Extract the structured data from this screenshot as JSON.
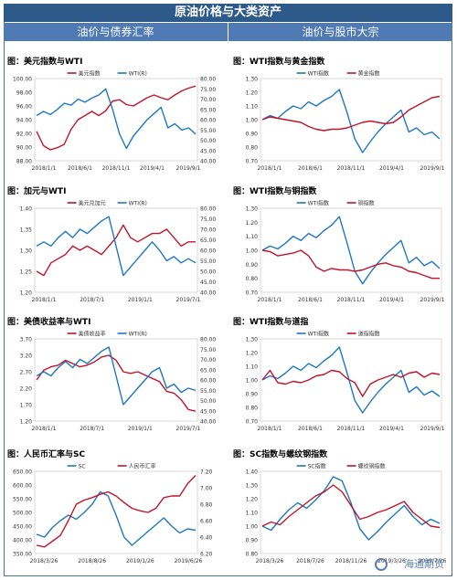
{
  "header": {
    "title": "原油价格与大类资产",
    "left_section": "油价与债券汇率",
    "right_section": "油价与股市大宗"
  },
  "watermark": "海通期货",
  "colors": {
    "red": "#c0142b",
    "blue": "#1f77c4",
    "header": "#2e5a8a",
    "section": "#4f7ab3"
  },
  "chart_data": [
    {
      "id": "usd-wti",
      "type": "line",
      "title": "图：美元指数与WTI",
      "x_ticks": [
        "2018/1/1",
        "2018/6/1",
        "2018/11/1",
        "2019/4/1",
        "2019/9/1"
      ],
      "y_left": {
        "ticks": [
          "88.00",
          "90.00",
          "92.00",
          "94.00",
          "96.00",
          "98.00",
          "100.00"
        ],
        "range": [
          88,
          100
        ]
      },
      "y_right": {
        "ticks": [
          "40.00",
          "45.00",
          "50.00",
          "55.00",
          "60.00",
          "65.00",
          "70.00",
          "75.00",
          "80.00"
        ],
        "range": [
          40,
          80
        ]
      },
      "series": [
        {
          "name": "美元指数",
          "axis": "left",
          "color": "#c0142b",
          "values": [
            92.3,
            90.2,
            89.6,
            89.9,
            90.4,
            92.6,
            94.0,
            94.6,
            95.2,
            94.6,
            95.3,
            96.7,
            96.9,
            96.2,
            96.0,
            96.6,
            97.2,
            97.6,
            97.2,
            96.9,
            97.6,
            98.2,
            98.6,
            98.9
          ]
        },
        {
          "name": "WTI(R)",
          "axis": "right",
          "color": "#1f77c4",
          "values": [
            62.0,
            64.0,
            62.5,
            65.0,
            68.0,
            67.0,
            70.0,
            68.5,
            70.5,
            72.0,
            75.0,
            65.0,
            53.0,
            46.0,
            52.0,
            56.0,
            60.0,
            63.0,
            66.0,
            56.0,
            58.0,
            55.0,
            56.0,
            53.0
          ]
        }
      ]
    },
    {
      "id": "wti-gold",
      "type": "line",
      "title": "图：WTI指数与黄金指数",
      "x_ticks": [
        "2018/1/1",
        "2018/6/1",
        "2018/11/1",
        "2019/4/1",
        "2019/9/1"
      ],
      "y_left": {
        "ticks": [
          "0.70",
          "0.80",
          "0.90",
          "1.00",
          "1.10",
          "1.20",
          "1.30"
        ],
        "range": [
          0.7,
          1.3
        ]
      },
      "series": [
        {
          "name": "WTI指数",
          "axis": "left",
          "color": "#1f77c4",
          "values": [
            1.0,
            1.03,
            1.01,
            1.06,
            1.1,
            1.08,
            1.13,
            1.1,
            1.14,
            1.17,
            1.22,
            1.05,
            0.86,
            0.76,
            0.84,
            0.91,
            0.97,
            1.02,
            1.07,
            0.91,
            0.94,
            0.89,
            0.91,
            0.86
          ]
        },
        {
          "name": "黄金指数",
          "axis": "left",
          "color": "#c0142b",
          "values": [
            1.0,
            1.02,
            1.01,
            1.0,
            0.99,
            0.98,
            0.95,
            0.93,
            0.92,
            0.93,
            0.93,
            0.94,
            0.96,
            0.98,
            0.99,
            0.98,
            0.97,
            0.98,
            1.02,
            1.07,
            1.1,
            1.13,
            1.16,
            1.17
          ]
        }
      ]
    },
    {
      "id": "cad-wti",
      "type": "line",
      "title": "图：加元与WTI",
      "x_ticks": [
        "2018/1/1",
        "2018/7/1",
        "2019/1/1",
        "2019/7/1"
      ],
      "y_left": {
        "ticks": [
          "1.20",
          "1.25",
          "1.30",
          "1.35",
          "1.40"
        ],
        "range": [
          1.2,
          1.4
        ]
      },
      "y_right": {
        "ticks": [
          "40.00",
          "45.00",
          "50.00",
          "55.00",
          "60.00",
          "65.00",
          "70.00",
          "75.00",
          "80.00"
        ],
        "range": [
          40,
          80
        ]
      },
      "series": [
        {
          "name": "美元兑加元",
          "axis": "left",
          "color": "#c0142b",
          "values": [
            1.25,
            1.24,
            1.27,
            1.28,
            1.29,
            1.31,
            1.3,
            1.31,
            1.3,
            1.29,
            1.31,
            1.33,
            1.36,
            1.33,
            1.32,
            1.33,
            1.34,
            1.34,
            1.35,
            1.33,
            1.31,
            1.32,
            1.32
          ]
        },
        {
          "name": "WTI(R)",
          "axis": "right",
          "color": "#1f77c4",
          "values": [
            62.0,
            64.0,
            62.0,
            66.0,
            69.0,
            66.0,
            70.0,
            68.0,
            71.0,
            74.0,
            76.0,
            62.0,
            48.0,
            52.0,
            56.0,
            60.0,
            64.0,
            60.0,
            55.0,
            57.0,
            54.0,
            56.0,
            54.0
          ]
        }
      ]
    },
    {
      "id": "wti-copper",
      "type": "line",
      "title": "图：WTI指数与铜指数",
      "x_ticks": [
        "2018/1/1",
        "2018/6/1",
        "2018/11/1",
        "2019/4/1",
        "2019/9/1"
      ],
      "y_left": {
        "ticks": [
          "0.70",
          "0.80",
          "0.90",
          "1.00",
          "1.10",
          "1.20",
          "1.30"
        ],
        "range": [
          0.7,
          1.3
        ]
      },
      "series": [
        {
          "name": "WTI指数",
          "axis": "left",
          "color": "#1f77c4",
          "values": [
            1.0,
            1.03,
            1.01,
            1.05,
            1.1,
            1.07,
            1.12,
            1.09,
            1.14,
            1.18,
            1.24,
            1.05,
            0.85,
            0.76,
            0.84,
            0.91,
            0.97,
            1.02,
            1.07,
            0.91,
            0.95,
            0.89,
            0.92,
            0.87
          ]
        },
        {
          "name": "铜指数",
          "axis": "left",
          "color": "#c0142b",
          "values": [
            1.0,
            0.99,
            0.96,
            0.97,
            0.98,
            1.0,
            0.96,
            0.88,
            0.85,
            0.87,
            0.86,
            0.86,
            0.85,
            0.86,
            0.88,
            0.9,
            0.91,
            0.89,
            0.88,
            0.85,
            0.84,
            0.82,
            0.8,
            0.8
          ]
        }
      ]
    },
    {
      "id": "ust-wti",
      "type": "line",
      "title": "图：美债收益率与WTI",
      "x_ticks": [
        "2018/1/1",
        "2018/7/1",
        "2019/1/1",
        "2019/7/1"
      ],
      "y_left": {
        "ticks": [
          "1.20",
          "1.70",
          "2.20",
          "2.70",
          "3.20",
          "3.70"
        ],
        "range": [
          1.2,
          3.7
        ]
      },
      "y_right": {
        "ticks": [
          "40.00",
          "45.00",
          "50.00",
          "55.00",
          "60.00",
          "65.00",
          "70.00",
          "75.00",
          "80.00"
        ],
        "range": [
          40,
          80
        ]
      },
      "series": [
        {
          "name": "美债收益率",
          "axis": "left",
          "color": "#c0142b",
          "values": [
            2.45,
            2.75,
            2.85,
            2.9,
            3.05,
            2.95,
            2.85,
            2.9,
            3.0,
            3.15,
            3.2,
            3.05,
            2.7,
            2.65,
            2.7,
            2.6,
            2.5,
            2.4,
            2.1,
            2.05,
            1.85,
            1.55,
            1.5
          ]
        },
        {
          "name": "WTI(R)",
          "axis": "right",
          "color": "#1f77c4",
          "values": [
            62.0,
            64.0,
            62.0,
            66.0,
            69.0,
            66.0,
            70.0,
            68.0,
            71.0,
            74.0,
            76.0,
            62.0,
            48.0,
            52.0,
            56.0,
            60.0,
            64.0,
            66.0,
            56.0,
            58.0,
            54.0,
            56.0,
            55.0
          ]
        }
      ]
    },
    {
      "id": "wti-sp",
      "type": "line",
      "title": "图：WTI指数与道指",
      "x_ticks": [
        "2018/1/1",
        "2018/6/1",
        "2018/11/1",
        "2019/4/1",
        "2019/9/1"
      ],
      "y_left": {
        "ticks": [
          "0.70",
          "0.80",
          "0.90",
          "1.00",
          "1.10",
          "1.20",
          "1.30"
        ],
        "range": [
          0.7,
          1.3
        ]
      },
      "series": [
        {
          "name": "WTI指数",
          "axis": "left",
          "color": "#1f77c4",
          "values": [
            1.0,
            1.03,
            1.01,
            1.05,
            1.1,
            1.07,
            1.12,
            1.09,
            1.14,
            1.18,
            1.24,
            1.05,
            0.85,
            0.76,
            0.84,
            0.91,
            0.97,
            1.02,
            1.07,
            0.91,
            0.95,
            0.89,
            0.92,
            0.88
          ]
        },
        {
          "name": "道指指数",
          "axis": "left",
          "color": "#c0142b",
          "values": [
            1.0,
            1.07,
            0.98,
            0.97,
            0.99,
            0.98,
            1.0,
            1.03,
            1.04,
            1.07,
            1.06,
            1.01,
            0.98,
            0.88,
            0.97,
            1.0,
            1.02,
            1.04,
            1.02,
            1.05,
            1.06,
            1.02,
            1.05,
            1.04
          ]
        }
      ]
    },
    {
      "id": "cny-sc",
      "type": "line",
      "title": "图：人民币汇率与SC",
      "x_ticks": [
        "2018/3/26",
        "2018/8/26",
        "2019/1/26",
        "2019/6/26"
      ],
      "y_left": {
        "ticks": [
          "350.00",
          "400.00",
          "450.00",
          "500.00",
          "550.00",
          "600.00",
          "650.00"
        ],
        "range": [
          350,
          650
        ]
      },
      "y_right": {
        "ticks": [
          "6.20",
          "6.40",
          "6.60",
          "6.80",
          "7.00",
          "7.20"
        ],
        "range": [
          6.2,
          7.2
        ]
      },
      "series": [
        {
          "name": "SC",
          "axis": "left",
          "color": "#1f77c4",
          "values": [
            420,
            410,
            445,
            470,
            490,
            475,
            500,
            530,
            575,
            560,
            490,
            410,
            380,
            405,
            430,
            455,
            480,
            450,
            425,
            440,
            435
          ]
        },
        {
          "name": "人民币汇率",
          "axis": "right",
          "color": "#c0142b",
          "values": [
            6.3,
            6.28,
            6.35,
            6.42,
            6.6,
            6.8,
            6.85,
            6.88,
            6.92,
            6.95,
            6.9,
            6.82,
            6.75,
            6.72,
            6.7,
            6.75,
            6.88,
            6.9,
            6.9,
            7.05,
            7.15
          ]
        }
      ]
    },
    {
      "id": "sc-rebar",
      "type": "line",
      "title": "图：SC指数与螺纹钢指数",
      "x_ticks": [
        "2018/3/26",
        "2018/7/26",
        "2018/11/26",
        "2019/3/26",
        "2019/7/26"
      ],
      "y_left": {
        "ticks": [
          "0.80",
          "0.90",
          "1.00",
          "1.10",
          "1.20",
          "1.30",
          "1.40"
        ],
        "range": [
          0.8,
          1.4
        ]
      },
      "series": [
        {
          "name": "SC指数",
          "axis": "left",
          "color": "#1f77c4",
          "values": [
            1.0,
            0.97,
            1.05,
            1.12,
            1.17,
            1.13,
            1.19,
            1.26,
            1.36,
            1.33,
            1.17,
            0.98,
            0.9,
            0.96,
            1.03,
            1.09,
            1.15,
            1.07,
            1.01,
            1.05,
            1.02
          ]
        },
        {
          "name": "螺纹钢指数",
          "axis": "left",
          "color": "#c0142b",
          "values": [
            1.0,
            1.03,
            1.01,
            1.07,
            1.12,
            1.17,
            1.22,
            1.25,
            1.3,
            1.25,
            1.15,
            1.05,
            1.07,
            1.1,
            1.12,
            1.15,
            1.18,
            1.1,
            1.05,
            1.0,
            0.99
          ]
        }
      ]
    }
  ]
}
